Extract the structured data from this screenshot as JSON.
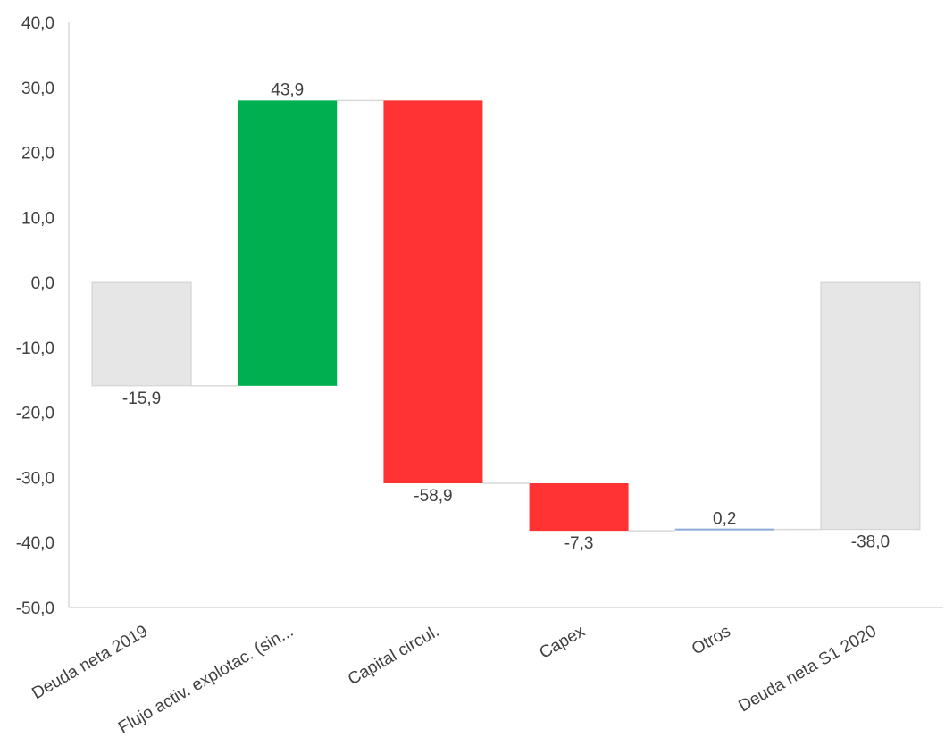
{
  "chart_data": {
    "type": "bar",
    "subtype": "waterfall",
    "title": "",
    "xlabel": "",
    "ylabel": "",
    "ylim": [
      -50,
      40
    ],
    "yticks": [
      40,
      30,
      20,
      10,
      0,
      -10,
      -20,
      -30,
      -40,
      -50
    ],
    "ytick_labels": [
      "40,0",
      "30,0",
      "20,0",
      "10,0",
      "0,0",
      "-10,0",
      "-20,0",
      "-30,0",
      "-40,0",
      "-50,0"
    ],
    "grid": false,
    "legend": "none",
    "categories": [
      "Deuda neta 2019",
      "Flujo activ. explotac. (sin...",
      "Capital circul.",
      "Capex",
      "Otros",
      "Deuda neta S1 2020"
    ],
    "values": [
      -15.9,
      43.9,
      -58.9,
      -7.3,
      0.2,
      -38.0
    ],
    "value_labels": [
      "-15,9",
      "43,9",
      "-58,9",
      "-7,3",
      "0,2",
      "-38,0"
    ],
    "bar_start": [
      0,
      -15.9,
      28.0,
      -30.9,
      -38.2,
      0
    ],
    "bar_end": [
      -15.9,
      28.0,
      -30.9,
      -38.2,
      -38.0,
      -38.0
    ],
    "bar_kind": [
      "total",
      "increase",
      "decrease",
      "decrease",
      "increase",
      "total"
    ],
    "colors": {
      "total": "#e6e6e6",
      "increase": "#00b050",
      "decrease": "#ff3333",
      "small_increase": "#8eaadb",
      "connector": "#d9d9d9",
      "axis": "#d9d9d9",
      "text": "#404040"
    }
  }
}
